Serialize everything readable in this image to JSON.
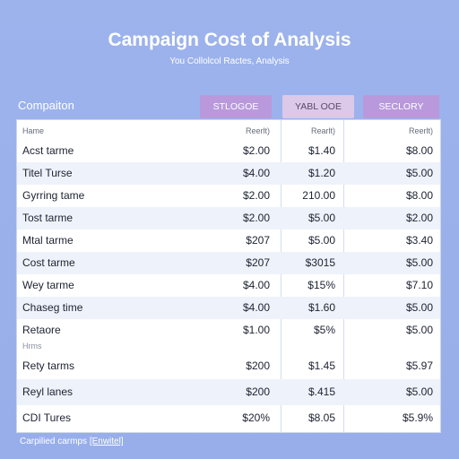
{
  "title": "Campaign Cost of Analysis",
  "subtitle": "You Collolcol Ractes, Analysis",
  "section_label": "Compaiton",
  "tabs": [
    "STLOGOE",
    "YABL OOE",
    "SECLORY"
  ],
  "table": {
    "header": [
      "Hame",
      "Reerlt)",
      "Rearlt)",
      "Reerlt)"
    ],
    "rows": [
      [
        "Acst tarme",
        "$2.00",
        "$1.40",
        "$8.00"
      ],
      [
        "Titel Turse",
        "$4.00",
        "$1.20",
        "$5.00"
      ],
      [
        "Gyrring tame",
        "$2.00",
        "210.00",
        "$8.00"
      ],
      [
        "Tost tarme",
        "$2.00",
        "$5.00",
        "$2.00"
      ],
      [
        "Mtal tarme",
        "$207",
        "$5.00",
        "$3.40"
      ],
      [
        "Cost tarme",
        "$207",
        "$3015",
        "$5.00"
      ],
      [
        "Wey tarme",
        "$4.00",
        "$15%",
        "$7.10"
      ],
      [
        "Chaseg time",
        "$4.00",
        "$1.60",
        "$5.00"
      ],
      [
        "Retaore",
        "$1.00",
        "$5%",
        "$5.00"
      ]
    ],
    "mid_label": "Hrms",
    "rows2": [
      [
        "Rety tarms",
        "$200",
        "$1.45",
        "$5.97"
      ],
      [
        "Reyl lanes",
        "$200",
        "$.415",
        "$5.00"
      ],
      [
        "CDI Tures",
        "$20%",
        "$8.05",
        "$5.9%"
      ]
    ]
  },
  "footer": {
    "text": "Carpilied carmps",
    "link": "[Enwitel]"
  }
}
